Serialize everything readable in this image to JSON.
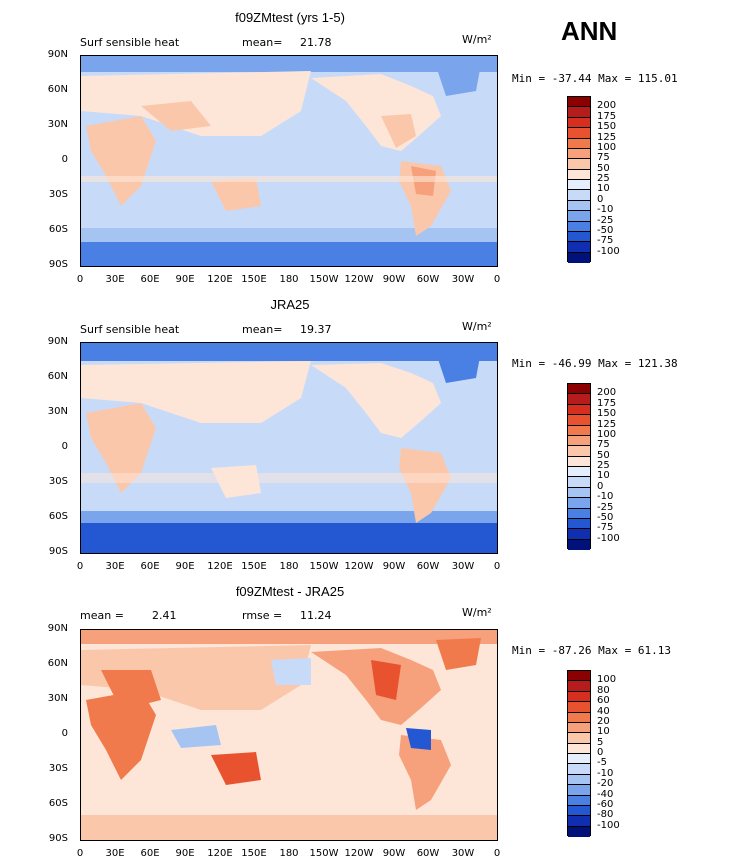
{
  "season": "ANN",
  "units": "W/m²",
  "lat_ticks": [
    "90N",
    "60N",
    "30N",
    "0",
    "30S",
    "60S",
    "90S"
  ],
  "lon_ticks": [
    "0",
    "30E",
    "60E",
    "90E",
    "120E",
    "150E",
    "180",
    "150W",
    "120W",
    "90W",
    "60W",
    "30W",
    "0"
  ],
  "panels": [
    {
      "title": "f09ZMtest (yrs 1-5)",
      "left_label": "Surf sensible heat",
      "stat_label": "mean=",
      "stat_value": "21.78",
      "min_max": "Min = -37.44  Max = 115.01",
      "colorbar_levels": [
        "200",
        "175",
        "150",
        "125",
        "100",
        "75",
        "50",
        "25",
        "10",
        "0",
        "-10",
        "-25",
        "-50",
        "-75",
        "-100"
      ],
      "colorbar_colors": [
        "#8b0000",
        "#b71c1c",
        "#d62f1f",
        "#e8522e",
        "#f07a4c",
        "#f6a07c",
        "#fbc7ab",
        "#fde6d8",
        "#e4eefc",
        "#c7dbf8",
        "#a6c4f2",
        "#7aa5ec",
        "#4a7fe4",
        "#2458d2",
        "#0f2fb0",
        "#00127a"
      ]
    },
    {
      "title": "JRA25",
      "left_label": "Surf sensible heat",
      "stat_label": "mean=",
      "stat_value": "19.37",
      "min_max": "Min = -46.99  Max = 121.38",
      "colorbar_levels": [
        "200",
        "175",
        "150",
        "125",
        "100",
        "75",
        "50",
        "25",
        "10",
        "0",
        "-10",
        "-25",
        "-50",
        "-75",
        "-100"
      ],
      "colorbar_colors": [
        "#8b0000",
        "#b71c1c",
        "#d62f1f",
        "#e8522e",
        "#f07a4c",
        "#f6a07c",
        "#fbc7ab",
        "#fde6d8",
        "#e4eefc",
        "#c7dbf8",
        "#a6c4f2",
        "#7aa5ec",
        "#4a7fe4",
        "#2458d2",
        "#0f2fb0",
        "#00127a"
      ]
    },
    {
      "title": "f09ZMtest - JRA25",
      "left_label": "mean =",
      "left_value": "2.41",
      "stat_label": "rmse =",
      "stat_value": "11.24",
      "min_max": "Min = -87.26  Max =  61.13",
      "colorbar_levels": [
        "100",
        "80",
        "60",
        "40",
        "20",
        "10",
        "5",
        "0",
        "-5",
        "-10",
        "-20",
        "-40",
        "-60",
        "-80",
        "-100"
      ],
      "colorbar_colors": [
        "#8b0000",
        "#b71c1c",
        "#d62f1f",
        "#e8522e",
        "#f07a4c",
        "#f6a07c",
        "#fbc7ab",
        "#fde6d8",
        "#e4eefc",
        "#c7dbf8",
        "#a6c4f2",
        "#7aa5ec",
        "#4a7fe4",
        "#2458d2",
        "#0f2fb0",
        "#00127a"
      ]
    }
  ]
}
